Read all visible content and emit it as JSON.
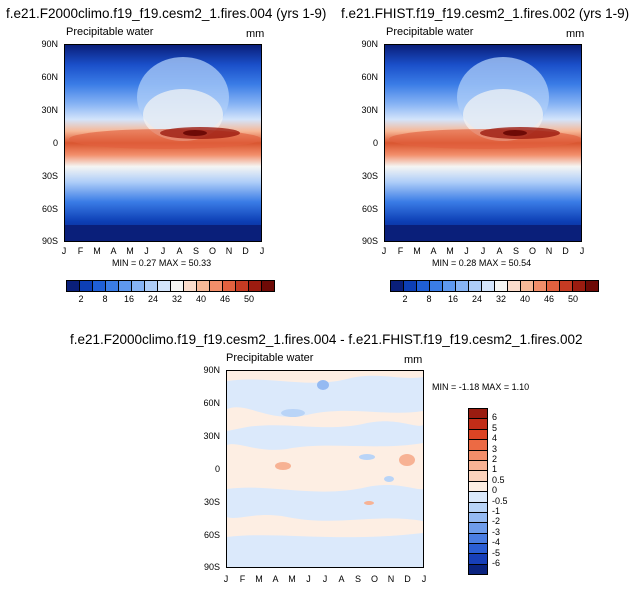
{
  "chart_data": [
    {
      "type": "heatmap",
      "title": "f.e21.F2000climo.f19_f19.cesm2_1.fires.004 (yrs 1-9)",
      "subtitle": "Precipitable water",
      "units": "mm",
      "xlabel": "",
      "ylabel": "",
      "x_ticks": [
        "J",
        "F",
        "M",
        "A",
        "M",
        "J",
        "J",
        "A",
        "S",
        "O",
        "N",
        "D",
        "J"
      ],
      "y_ticks": [
        "90N",
        "60N",
        "30N",
        "0",
        "30S",
        "60S",
        "90S"
      ],
      "ylim": [
        -90,
        90
      ],
      "min_label": "MIN =",
      "min": "0.27",
      "max_label": "MAX =",
      "max": "50.33",
      "colorbar": {
        "levels": [
          "2",
          "8",
          "16",
          "24",
          "32",
          "40",
          "46",
          "50"
        ],
        "colors": [
          "#0a1f7a",
          "#0d3fb5",
          "#1f5fd6",
          "#3a7ce6",
          "#5e98ef",
          "#86b3f4",
          "#aecdf8",
          "#d3e4fb",
          "#f5f5f3",
          "#fbdccb",
          "#f7b897",
          "#f28e6a",
          "#e2613f",
          "#c53b23",
          "#9c1c10",
          "#6e0a06"
        ]
      }
    },
    {
      "type": "heatmap",
      "title": "f.e21.FHIST.f19_f19.cesm2_1.fires.002 (yrs 1-9)",
      "subtitle": "Precipitable water",
      "units": "mm",
      "xlabel": "",
      "ylabel": "",
      "x_ticks": [
        "J",
        "F",
        "M",
        "A",
        "M",
        "J",
        "J",
        "A",
        "S",
        "O",
        "N",
        "D",
        "J"
      ],
      "y_ticks": [
        "90N",
        "60N",
        "30N",
        "0",
        "30S",
        "60S",
        "90S"
      ],
      "ylim": [
        -90,
        90
      ],
      "min_label": "MIN =",
      "min": "0.28",
      "max_label": "MAX =",
      "max": "50.54",
      "colorbar": {
        "levels": [
          "2",
          "8",
          "16",
          "24",
          "32",
          "40",
          "46",
          "50"
        ],
        "colors": [
          "#0a1f7a",
          "#0d3fb5",
          "#1f5fd6",
          "#3a7ce6",
          "#5e98ef",
          "#86b3f4",
          "#aecdf8",
          "#d3e4fb",
          "#f5f5f3",
          "#fbdccb",
          "#f7b897",
          "#f28e6a",
          "#e2613f",
          "#c53b23",
          "#9c1c10",
          "#6e0a06"
        ]
      }
    },
    {
      "type": "heatmap",
      "title": "f.e21.F2000climo.f19_f19.cesm2_1.fires.004 - f.e21.FHIST.f19_f19.cesm2_1.fires.002",
      "subtitle": "Precipitable water",
      "units": "mm",
      "xlabel": "",
      "ylabel": "",
      "x_ticks": [
        "J",
        "F",
        "M",
        "A",
        "M",
        "J",
        "J",
        "A",
        "S",
        "O",
        "N",
        "D",
        "J"
      ],
      "y_ticks": [
        "90N",
        "60N",
        "30N",
        "0",
        "30S",
        "60S",
        "90S"
      ],
      "ylim": [
        -90,
        90
      ],
      "min_label": "MIN =",
      "min": "-1.18",
      "max_label": "MAX =",
      "max": "1.10",
      "colorbar": {
        "levels": [
          "6",
          "5",
          "4",
          "3",
          "2",
          "1",
          "0.5",
          "0",
          "-0.5",
          "-1",
          "-2",
          "-3",
          "-4",
          "-5",
          "-6"
        ],
        "colors": [
          "#9a1c10",
          "#c12d18",
          "#dc4424",
          "#ec6a44",
          "#f28e6a",
          "#f7b294",
          "#fbd3bd",
          "#fdeee3",
          "#dbe9fb",
          "#b9d4f7",
          "#95baf2",
          "#6e9ceb",
          "#4a7de2",
          "#2b5ed4",
          "#173fb8",
          "#0a237f"
        ]
      }
    }
  ]
}
